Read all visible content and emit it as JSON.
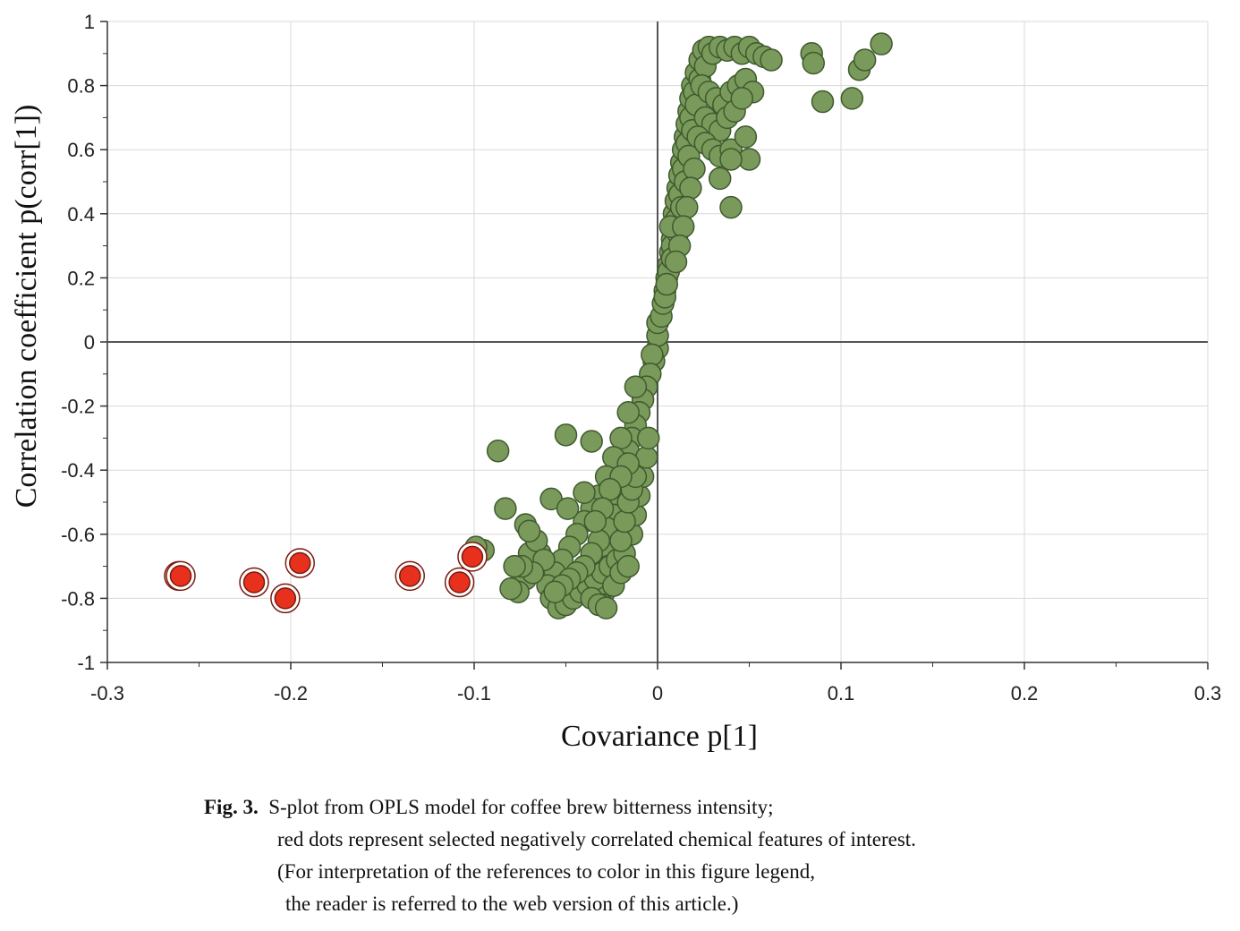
{
  "chart_data": {
    "type": "scatter",
    "xlabel": "Covariance p[1]",
    "ylabel": "Correlation coefficient p(corr[1])",
    "xlim": [
      -0.3,
      0.3
    ],
    "ylim": [
      -1,
      1
    ],
    "x_ticks": [
      "-0.3",
      "-0.2",
      "-0.1",
      "0",
      "0.1",
      "0.2",
      "0.3"
    ],
    "y_ticks": [
      "1",
      "0.8",
      "0.6",
      "0.4",
      "0.2",
      "0",
      "-0.2",
      "-0.4",
      "-0.6",
      "-0.8",
      "-1"
    ],
    "grid": true,
    "colors": {
      "green": "#7a9a5c",
      "green_edge": "#3f5a2e",
      "red": "#e8311d",
      "red_edge": "#7a1a10"
    },
    "series": [
      {
        "values": [
          [
            0.0,
            -0.02
          ],
          [
            0.0,
            0.02
          ],
          [
            0.0,
            0.06
          ],
          [
            -0.002,
            -0.06
          ],
          [
            -0.003,
            -0.04
          ],
          [
            0.002,
            0.08
          ],
          [
            0.003,
            0.12
          ],
          [
            0.004,
            0.16
          ],
          [
            0.005,
            0.2
          ],
          [
            0.006,
            0.24
          ],
          [
            0.007,
            0.28
          ],
          [
            0.008,
            0.32
          ],
          [
            0.009,
            0.36
          ],
          [
            0.009,
            0.4
          ],
          [
            0.01,
            0.44
          ],
          [
            0.011,
            0.48
          ],
          [
            0.012,
            0.52
          ],
          [
            0.013,
            0.56
          ],
          [
            0.014,
            0.6
          ],
          [
            0.015,
            0.64
          ],
          [
            0.016,
            0.68
          ],
          [
            0.017,
            0.72
          ],
          [
            0.018,
            0.76
          ],
          [
            0.019,
            0.8
          ],
          [
            0.021,
            0.84
          ],
          [
            0.023,
            0.88
          ],
          [
            0.025,
            0.91
          ],
          [
            0.028,
            0.92
          ],
          [
            -0.004,
            -0.1
          ],
          [
            -0.006,
            -0.14
          ],
          [
            -0.008,
            -0.18
          ],
          [
            -0.01,
            -0.22
          ],
          [
            -0.012,
            -0.26
          ],
          [
            -0.014,
            -0.3
          ],
          [
            -0.016,
            -0.34
          ],
          [
            -0.018,
            -0.38
          ],
          [
            -0.02,
            -0.42
          ],
          [
            -0.021,
            -0.46
          ],
          [
            -0.022,
            -0.5
          ],
          [
            -0.023,
            -0.54
          ],
          [
            -0.024,
            -0.58
          ],
          [
            -0.025,
            -0.62
          ],
          [
            -0.026,
            -0.66
          ],
          [
            -0.027,
            -0.7
          ],
          [
            -0.028,
            -0.74
          ],
          [
            -0.029,
            -0.78
          ],
          [
            -0.03,
            -0.82
          ],
          [
            0.004,
            0.14
          ],
          [
            0.006,
            0.22
          ],
          [
            0.008,
            0.3
          ],
          [
            0.01,
            0.38
          ],
          [
            0.012,
            0.46
          ],
          [
            0.014,
            0.54
          ],
          [
            0.016,
            0.62
          ],
          [
            0.018,
            0.7
          ],
          [
            0.02,
            0.78
          ],
          [
            0.008,
            0.26
          ],
          [
            0.005,
            0.18
          ],
          [
            0.011,
            0.34
          ],
          [
            0.007,
            0.36
          ],
          [
            0.013,
            0.42
          ],
          [
            0.015,
            0.5
          ],
          [
            0.017,
            0.58
          ],
          [
            0.019,
            0.66
          ],
          [
            0.021,
            0.74
          ],
          [
            0.023,
            0.82
          ],
          [
            0.026,
            0.86
          ],
          [
            0.03,
            0.9
          ],
          [
            0.034,
            0.92
          ],
          [
            0.038,
            0.91
          ],
          [
            0.042,
            0.92
          ],
          [
            0.046,
            0.9
          ],
          [
            0.05,
            0.92
          ],
          [
            0.054,
            0.9
          ],
          [
            0.058,
            0.89
          ],
          [
            0.062,
            0.88
          ],
          [
            0.024,
            0.8
          ],
          [
            0.028,
            0.78
          ],
          [
            0.032,
            0.76
          ],
          [
            0.036,
            0.74
          ],
          [
            0.04,
            0.78
          ],
          [
            0.044,
            0.8
          ],
          [
            0.048,
            0.82
          ],
          [
            0.052,
            0.78
          ],
          [
            0.026,
            0.7
          ],
          [
            0.03,
            0.68
          ],
          [
            0.034,
            0.66
          ],
          [
            0.038,
            0.7
          ],
          [
            0.042,
            0.72
          ],
          [
            0.046,
            0.76
          ],
          [
            0.022,
            0.64
          ],
          [
            0.026,
            0.62
          ],
          [
            0.03,
            0.6
          ],
          [
            0.034,
            0.58
          ],
          [
            0.04,
            0.6
          ],
          [
            0.048,
            0.64
          ],
          [
            0.05,
            0.57
          ],
          [
            0.04,
            0.57
          ],
          [
            0.034,
            0.51
          ],
          [
            0.04,
            0.42
          ],
          [
            0.02,
            0.54
          ],
          [
            0.018,
            0.48
          ],
          [
            0.016,
            0.42
          ],
          [
            0.014,
            0.36
          ],
          [
            0.012,
            0.3
          ],
          [
            0.01,
            0.25
          ],
          [
            0.084,
            0.9
          ],
          [
            0.085,
            0.87
          ],
          [
            0.09,
            0.75
          ],
          [
            0.106,
            0.76
          ],
          [
            0.11,
            0.85
          ],
          [
            0.113,
            0.88
          ],
          [
            0.122,
            0.93
          ],
          [
            -0.012,
            -0.14
          ],
          [
            -0.016,
            -0.22
          ],
          [
            -0.02,
            -0.3
          ],
          [
            -0.024,
            -0.36
          ],
          [
            -0.028,
            -0.42
          ],
          [
            -0.032,
            -0.48
          ],
          [
            -0.036,
            -0.52
          ],
          [
            -0.04,
            -0.56
          ],
          [
            -0.044,
            -0.6
          ],
          [
            -0.048,
            -0.64
          ],
          [
            -0.052,
            -0.68
          ],
          [
            -0.056,
            -0.72
          ],
          [
            -0.06,
            -0.76
          ],
          [
            -0.058,
            -0.8
          ],
          [
            -0.054,
            -0.83
          ],
          [
            -0.05,
            -0.82
          ],
          [
            -0.046,
            -0.8
          ],
          [
            -0.042,
            -0.78
          ],
          [
            -0.038,
            -0.76
          ],
          [
            -0.034,
            -0.74
          ],
          [
            -0.03,
            -0.72
          ],
          [
            -0.026,
            -0.7
          ],
          [
            -0.022,
            -0.68
          ],
          [
            -0.018,
            -0.66
          ],
          [
            -0.014,
            -0.6
          ],
          [
            -0.012,
            -0.54
          ],
          [
            -0.01,
            -0.48
          ],
          [
            -0.008,
            -0.42
          ],
          [
            -0.006,
            -0.36
          ],
          [
            -0.005,
            -0.3
          ],
          [
            -0.024,
            -0.54
          ],
          [
            -0.028,
            -0.58
          ],
          [
            -0.032,
            -0.62
          ],
          [
            -0.036,
            -0.66
          ],
          [
            -0.04,
            -0.7
          ],
          [
            -0.044,
            -0.72
          ],
          [
            -0.048,
            -0.74
          ],
          [
            -0.052,
            -0.76
          ],
          [
            -0.056,
            -0.78
          ],
          [
            -0.036,
            -0.8
          ],
          [
            -0.032,
            -0.82
          ],
          [
            -0.028,
            -0.83
          ],
          [
            -0.024,
            -0.76
          ],
          [
            -0.02,
            -0.72
          ],
          [
            -0.016,
            -0.7
          ],
          [
            -0.02,
            -0.62
          ],
          [
            -0.018,
            -0.56
          ],
          [
            -0.016,
            -0.5
          ],
          [
            -0.014,
            -0.46
          ],
          [
            -0.012,
            -0.42
          ],
          [
            -0.016,
            -0.38
          ],
          [
            -0.02,
            -0.42
          ],
          [
            -0.026,
            -0.46
          ],
          [
            -0.03,
            -0.52
          ],
          [
            -0.034,
            -0.56
          ],
          [
            -0.064,
            -0.66
          ],
          [
            -0.068,
            -0.7
          ],
          [
            -0.072,
            -0.74
          ],
          [
            -0.076,
            -0.78
          ],
          [
            -0.08,
            -0.77
          ],
          [
            -0.07,
            -0.66
          ],
          [
            -0.066,
            -0.62
          ],
          [
            -0.062,
            -0.68
          ],
          [
            -0.068,
            -0.72
          ],
          [
            -0.074,
            -0.7
          ],
          [
            -0.078,
            -0.7
          ],
          [
            -0.087,
            -0.34
          ],
          [
            -0.083,
            -0.52
          ],
          [
            -0.072,
            -0.57
          ],
          [
            -0.07,
            -0.59
          ],
          [
            -0.058,
            -0.49
          ],
          [
            -0.05,
            -0.29
          ],
          [
            -0.049,
            -0.52
          ],
          [
            -0.036,
            -0.31
          ],
          [
            -0.04,
            -0.47
          ],
          [
            -0.095,
            -0.65
          ],
          [
            -0.099,
            -0.64
          ]
        ]
      },
      {
        "values": [
          [
            -0.261,
            -0.73
          ],
          [
            -0.26,
            -0.73
          ],
          [
            -0.22,
            -0.75
          ],
          [
            -0.203,
            -0.8
          ],
          [
            -0.195,
            -0.69
          ],
          [
            -0.135,
            -0.73
          ],
          [
            -0.108,
            -0.75
          ],
          [
            -0.101,
            -0.67
          ]
        ]
      }
    ]
  },
  "caption": {
    "label": "Fig. 3.",
    "line1": "S-plot from OPLS model for coffee brew bitterness intensity;",
    "line2": "red dots represent selected negatively correlated chemical features of interest.",
    "line3": "(For interpretation of the references to color in this figure legend,",
    "line4": "the reader is referred to the web version of this article.)"
  }
}
